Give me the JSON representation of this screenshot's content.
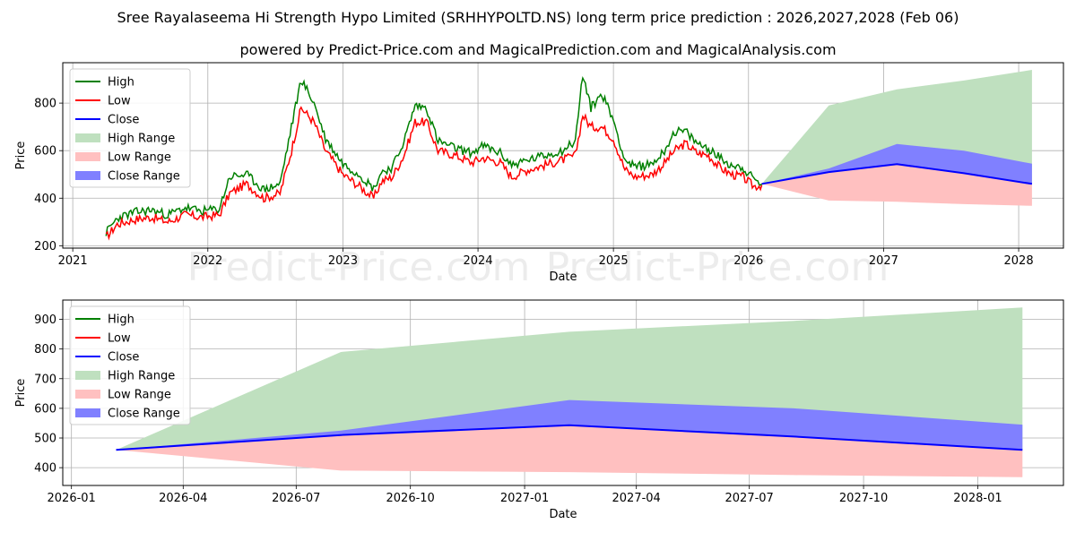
{
  "title": "Sree Rayalaseema Hi Strength Hypo Limited (SRHHYPOLTD.NS) long term price prediction : 2026,2027,2028 (Feb 06)",
  "subtitle": "powered by Predict-Price.com and MagicalPrediction.com and MagicalAnalysis.com",
  "watermark": "Predict-Price.com",
  "colors": {
    "high": "#008000",
    "low": "#ff0000",
    "close": "#0000ff",
    "high_range": "#bfe0bf",
    "low_range": "#ffc0c0",
    "close_range": "#8080ff"
  },
  "chart_data": [
    {
      "type": "line",
      "xlabel": "Date",
      "ylabel": "Price",
      "xlim": [
        "2020-12-05",
        "2028-05-01"
      ],
      "ylim": [
        190,
        970
      ],
      "x_ticks": [
        "2021",
        "2022",
        "2023",
        "2024",
        "2025",
        "2026",
        "2027",
        "2028"
      ],
      "y_ticks": [
        200,
        400,
        600,
        800
      ],
      "legend": [
        "High",
        "Low",
        "Close",
        "High Range",
        "Low Range",
        "Close Range"
      ],
      "legend_position": "upper-left",
      "history_low_points": [
        [
          "2021-04-01",
          235
        ],
        [
          "2021-05-01",
          290
        ],
        [
          "2021-06-15",
          310
        ],
        [
          "2021-08-01",
          320
        ],
        [
          "2021-09-15",
          300
        ],
        [
          "2021-11-01",
          330
        ],
        [
          "2021-12-15",
          320
        ],
        [
          "2022-02-01",
          330
        ],
        [
          "2022-03-01",
          420
        ],
        [
          "2022-04-15",
          460
        ],
        [
          "2022-06-01",
          400
        ],
        [
          "2022-07-15",
          420
        ],
        [
          "2022-08-15",
          600
        ],
        [
          "2022-09-10",
          780
        ],
        [
          "2022-10-15",
          720
        ],
        [
          "2022-11-15",
          600
        ],
        [
          "2023-01-01",
          500
        ],
        [
          "2023-02-15",
          450
        ],
        [
          "2023-03-25",
          400
        ],
        [
          "2023-04-15",
          470
        ],
        [
          "2023-05-15",
          490
        ],
        [
          "2023-06-15",
          580
        ],
        [
          "2023-07-15",
          720
        ],
        [
          "2023-08-15",
          720
        ],
        [
          "2023-09-15",
          600
        ],
        [
          "2023-11-01",
          580
        ],
        [
          "2023-12-15",
          550
        ],
        [
          "2024-01-15",
          570
        ],
        [
          "2024-03-01",
          550
        ],
        [
          "2024-04-01",
          490
        ],
        [
          "2024-05-15",
          520
        ],
        [
          "2024-07-01",
          540
        ],
        [
          "2024-08-15",
          560
        ],
        [
          "2024-09-20",
          580
        ],
        [
          "2024-10-10",
          750
        ],
        [
          "2024-11-01",
          700
        ],
        [
          "2024-12-01",
          700
        ],
        [
          "2025-01-01",
          650
        ],
        [
          "2025-02-01",
          520
        ],
        [
          "2025-03-01",
          490
        ],
        [
          "2025-04-15",
          500
        ],
        [
          "2025-05-15",
          540
        ],
        [
          "2025-06-15",
          600
        ],
        [
          "2025-07-15",
          630
        ],
        [
          "2025-08-15",
          590
        ],
        [
          "2025-09-15",
          580
        ],
        [
          "2025-10-15",
          530
        ],
        [
          "2025-11-15",
          500
        ],
        [
          "2025-12-15",
          490
        ],
        [
          "2026-01-15",
          450
        ],
        [
          "2026-02-06",
          455
        ]
      ],
      "history_high_points": [
        [
          "2021-04-01",
          255
        ],
        [
          "2021-05-01",
          315
        ],
        [
          "2021-06-15",
          340
        ],
        [
          "2021-08-01",
          350
        ],
        [
          "2021-09-15",
          330
        ],
        [
          "2021-11-01",
          360
        ],
        [
          "2021-12-15",
          345
        ],
        [
          "2022-02-01",
          355
        ],
        [
          "2022-03-01",
          490
        ],
        [
          "2022-04-15",
          500
        ],
        [
          "2022-06-01",
          435
        ],
        [
          "2022-07-15",
          460
        ],
        [
          "2022-08-15",
          700
        ],
        [
          "2022-09-10",
          900
        ],
        [
          "2022-10-15",
          800
        ],
        [
          "2022-11-15",
          650
        ],
        [
          "2023-01-01",
          545
        ],
        [
          "2023-02-15",
          500
        ],
        [
          "2023-03-25",
          440
        ],
        [
          "2023-04-15",
          510
        ],
        [
          "2023-05-15",
          530
        ],
        [
          "2023-06-15",
          640
        ],
        [
          "2023-07-15",
          790
        ],
        [
          "2023-08-15",
          780
        ],
        [
          "2023-09-15",
          640
        ],
        [
          "2023-11-01",
          610
        ],
        [
          "2023-12-15",
          590
        ],
        [
          "2024-01-15",
          620
        ],
        [
          "2024-03-01",
          590
        ],
        [
          "2024-04-01",
          540
        ],
        [
          "2024-05-15",
          560
        ],
        [
          "2024-07-01",
          580
        ],
        [
          "2024-08-15",
          600
        ],
        [
          "2024-09-20",
          640
        ],
        [
          "2024-10-10",
          920
        ],
        [
          "2024-11-01",
          780
        ],
        [
          "2024-12-01",
          840
        ],
        [
          "2025-01-01",
          730
        ],
        [
          "2025-02-01",
          560
        ],
        [
          "2025-03-01",
          530
        ],
        [
          "2025-04-15",
          545
        ],
        [
          "2025-05-15",
          590
        ],
        [
          "2025-06-15",
          680
        ],
        [
          "2025-07-15",
          680
        ],
        [
          "2025-08-15",
          630
        ],
        [
          "2025-09-15",
          610
        ],
        [
          "2025-10-15",
          570
        ],
        [
          "2025-11-15",
          540
        ],
        [
          "2025-12-15",
          530
        ],
        [
          "2026-01-15",
          480
        ],
        [
          "2026-02-06",
          460
        ]
      ]
    },
    {
      "type": "area",
      "xlabel": "Date",
      "ylabel": "Price",
      "xlim": [
        "2025-12-25",
        "2028-03-10"
      ],
      "ylim": [
        340,
        965
      ],
      "x_ticks": [
        "2026-01",
        "2026-04",
        "2026-07",
        "2026-10",
        "2027-01",
        "2027-04",
        "2027-07",
        "2027-10",
        "2028-01"
      ],
      "y_ticks": [
        400,
        500,
        600,
        700,
        800,
        900
      ],
      "legend": [
        "High",
        "Low",
        "Close",
        "High Range",
        "Low Range",
        "Close Range"
      ],
      "legend_position": "upper-left",
      "forecast": {
        "dates": [
          "2026-02-06",
          "2026-08-06",
          "2027-02-06",
          "2027-08-06",
          "2028-02-06"
        ],
        "high_range_top": [
          460,
          790,
          858,
          895,
          940
        ],
        "close_range_top": [
          460,
          525,
          628,
          600,
          545
        ],
        "close": [
          460,
          510,
          543,
          505,
          460
        ],
        "low_range_bottom": [
          460,
          390,
          385,
          375,
          368
        ]
      }
    }
  ]
}
